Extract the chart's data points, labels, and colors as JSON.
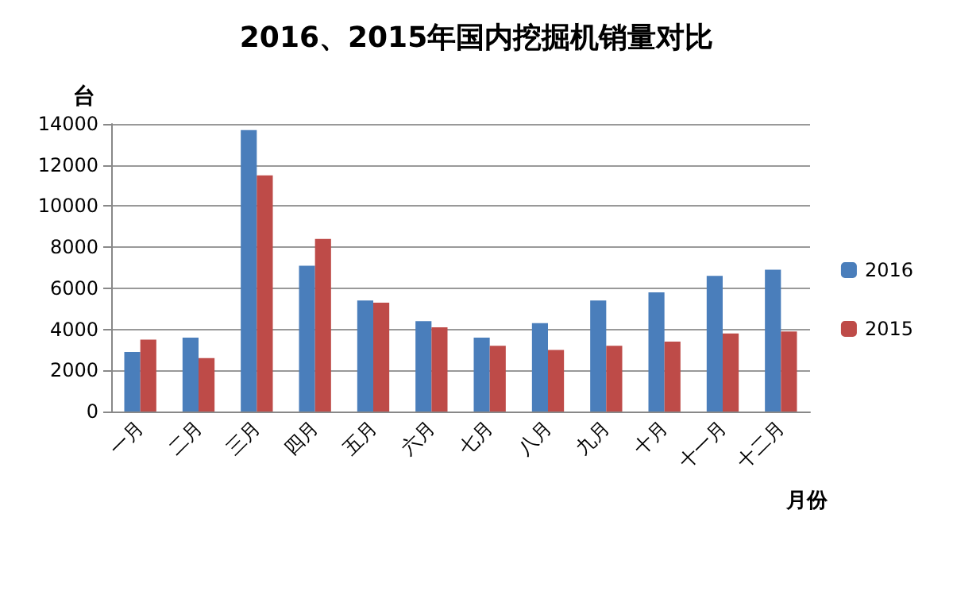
{
  "chart_data": {
    "type": "bar",
    "title": "2016、2015年国内挖掘机销量对比",
    "xlabel": "月份",
    "ylabel": "台",
    "categories": [
      "一月",
      "二月",
      "三月",
      "四月",
      "五月",
      "六月",
      "七月",
      "八月",
      "九月",
      "十月",
      "十一月",
      "十二月"
    ],
    "series": [
      {
        "name": "2016",
        "color": "#4a7ebb",
        "values": [
          2900,
          3600,
          13700,
          7100,
          5400,
          4400,
          3600,
          4300,
          5400,
          5800,
          6600,
          6900
        ]
      },
      {
        "name": "2015",
        "color": "#be4b48",
        "values": [
          3500,
          2600,
          11500,
          8400,
          5300,
          4100,
          3200,
          3000,
          3200,
          3400,
          3800,
          3900
        ]
      }
    ],
    "ylim": [
      0,
      14000
    ],
    "yticks": [
      0,
      2000,
      4000,
      6000,
      8000,
      10000,
      12000,
      14000
    ],
    "grid": "y",
    "legend": "right"
  }
}
